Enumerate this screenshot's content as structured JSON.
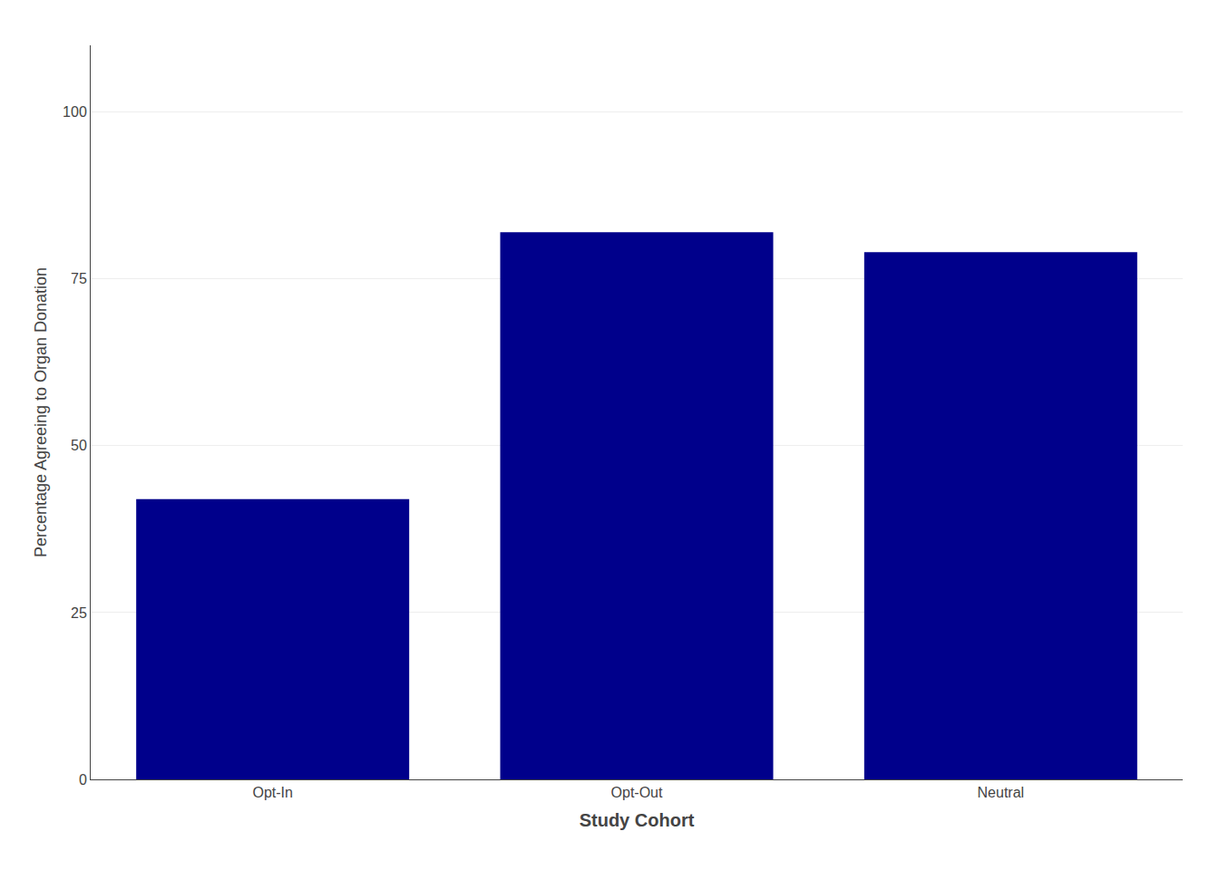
{
  "chart_data": {
    "type": "bar",
    "categories": [
      "Opt-In",
      "Opt-Out",
      "Neutral"
    ],
    "values": [
      42,
      82,
      79
    ],
    "color": "#00008B",
    "xlabel": "Study Cohort",
    "ylabel": "Percentage Agreeing to Organ Donation",
    "ylim": [
      0,
      110
    ],
    "yticks": [
      0,
      25,
      50,
      75,
      100
    ],
    "grid": true
  }
}
